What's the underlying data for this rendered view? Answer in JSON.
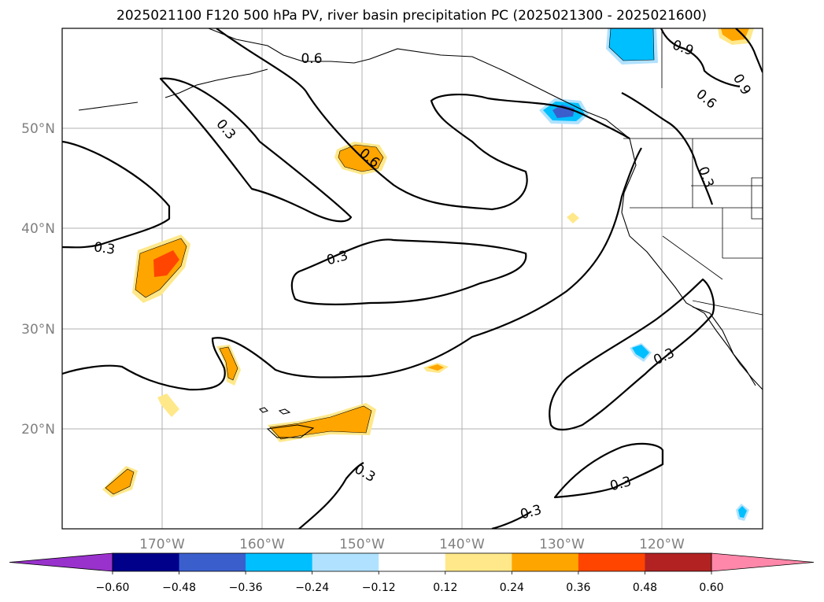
{
  "title": "2025021100 F120 500 hPa PV, river basin precipitation PC (2025021300 - 2025021600)",
  "lat_labels": [
    "50°N",
    "40°N",
    "30°N",
    "20°N"
  ],
  "lon_labels": [
    "170°W",
    "160°W",
    "150°W",
    "140°W",
    "130°W",
    "120°W"
  ],
  "map_extent": {
    "lon": [
      -180,
      -110
    ],
    "lat": [
      10,
      60
    ]
  },
  "contour_labels": [
    "0.6",
    "0.9",
    "0.9",
    "0.6",
    "0.3",
    "0.6",
    "0.3",
    "0.3",
    "0.3",
    "0.3",
    "0.3",
    "0.3",
    "0.3"
  ],
  "colorbar": {
    "tick_labels": [
      "−0.60",
      "−0.48",
      "−0.36",
      "−0.24",
      "−0.12",
      "0.12",
      "0.24",
      "0.36",
      "0.48",
      "0.60"
    ],
    "levels": [
      -0.6,
      -0.48,
      -0.36,
      -0.24,
      -0.12,
      0.12,
      0.24,
      0.36,
      0.48,
      0.6
    ],
    "colors": [
      "#9932cc",
      "#00008b",
      "#3a5fcd",
      "#00bfff",
      "#b0e2ff",
      "#ffffff",
      "#ffe88a",
      "#ffa500",
      "#ff4500",
      "#b22222",
      "#ff88aa"
    ],
    "extend": "both"
  }
}
